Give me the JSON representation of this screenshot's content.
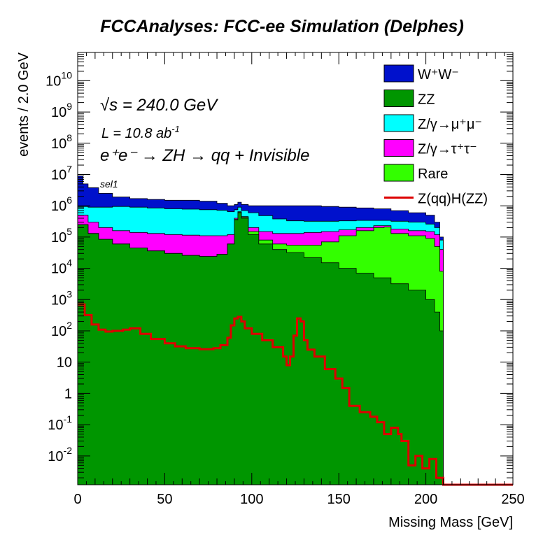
{
  "title": "FCCAnalyses: FCC-ee Simulation (Delphes)",
  "chart_data": {
    "type": "area",
    "stacked": true,
    "yscale": "log",
    "xlabel": "Missing Mass [GeV]",
    "ylabel": "events / 2.0 GeV",
    "xlim": [
      0,
      250
    ],
    "ylim": [
      0.0012,
      80000000000
    ],
    "x_ticks": [
      "0",
      "50",
      "100",
      "150",
      "200",
      "250"
    ],
    "y_ticks": [
      {
        "base": "10",
        "exp": "-2",
        "value": 0.01
      },
      {
        "base": "10",
        "exp": "-1",
        "value": 0.1
      },
      {
        "base": "1",
        "exp": "",
        "value": 1
      },
      {
        "base": "10",
        "exp": "",
        "value": 10
      },
      {
        "base": "10",
        "exp": "2",
        "value": 100
      },
      {
        "base": "10",
        "exp": "3",
        "value": 1000
      },
      {
        "base": "10",
        "exp": "4",
        "value": 10000
      },
      {
        "base": "10",
        "exp": "5",
        "value": 100000
      },
      {
        "base": "10",
        "exp": "6",
        "value": 1000000
      },
      {
        "base": "10",
        "exp": "7",
        "value": 10000000
      },
      {
        "base": "10",
        "exp": "8",
        "value": 100000000
      },
      {
        "base": "10",
        "exp": "9",
        "value": 1000000000
      },
      {
        "base": "10",
        "exp": "10",
        "value": 10000000000
      }
    ],
    "annotations": {
      "energy_sqrt": "√",
      "energy_s": "s",
      "energy_rest": " = 240.0 GeV",
      "lumi_main": "L = 10.8 ab",
      "lumi_sup": "-1",
      "process": "e⁺e⁻ → ZH → qq + Invisible",
      "selection": "sel1"
    },
    "series": [
      {
        "key": "zz",
        "label": "ZZ",
        "color": "#009600",
        "style": "fill",
        "points": [
          [
            0,
            250000
          ],
          [
            6,
            130000
          ],
          [
            12,
            85000
          ],
          [
            20,
            60000
          ],
          [
            30,
            45000
          ],
          [
            40,
            36000
          ],
          [
            50,
            30000
          ],
          [
            60,
            26000
          ],
          [
            70,
            24000
          ],
          [
            80,
            28000
          ],
          [
            86,
            60000
          ],
          [
            90,
            350000
          ],
          [
            92,
            600000
          ],
          [
            94,
            400000
          ],
          [
            98,
            120000
          ],
          [
            104,
            60000
          ],
          [
            112,
            40000
          ],
          [
            120,
            32000
          ],
          [
            130,
            22000
          ],
          [
            140,
            15000
          ],
          [
            150,
            10000
          ],
          [
            160,
            7000
          ],
          [
            170,
            5000
          ],
          [
            180,
            3200
          ],
          [
            190,
            2000
          ],
          [
            200,
            1000
          ],
          [
            205,
            400
          ],
          [
            208,
            100
          ],
          [
            210,
            1e-05
          ]
        ]
      },
      {
        "key": "rare",
        "label": "Rare",
        "color": "#33ff00",
        "style": "fill",
        "points": [
          [
            0,
            250000
          ],
          [
            6,
            130000
          ],
          [
            12,
            85000
          ],
          [
            20,
            60000
          ],
          [
            30,
            45000
          ],
          [
            40,
            36000
          ],
          [
            50,
            30000
          ],
          [
            60,
            26000
          ],
          [
            70,
            24000
          ],
          [
            80,
            28000
          ],
          [
            86,
            60000
          ],
          [
            90,
            370000
          ],
          [
            92,
            630000
          ],
          [
            94,
            430000
          ],
          [
            98,
            150000
          ],
          [
            104,
            80000
          ],
          [
            112,
            60000
          ],
          [
            120,
            55000
          ],
          [
            130,
            55000
          ],
          [
            140,
            70000
          ],
          [
            150,
            110000
          ],
          [
            160,
            160000
          ],
          [
            170,
            200000
          ],
          [
            176,
            210000
          ],
          [
            180,
            130000
          ],
          [
            190,
            110000
          ],
          [
            200,
            90000
          ],
          [
            205,
            50000
          ],
          [
            208,
            8000
          ],
          [
            210,
            1e-05
          ]
        ]
      },
      {
        "key": "tautau",
        "label": "Z/γ→τ⁺τ⁻",
        "color": "#ff00ff",
        "style": "fill",
        "points": [
          [
            0,
            500000
          ],
          [
            6,
            300000
          ],
          [
            12,
            200000
          ],
          [
            20,
            160000
          ],
          [
            30,
            140000
          ],
          [
            40,
            130000
          ],
          [
            50,
            120000
          ],
          [
            60,
            115000
          ],
          [
            70,
            110000
          ],
          [
            80,
            110000
          ],
          [
            86,
            120000
          ],
          [
            90,
            400000
          ],
          [
            92,
            650000
          ],
          [
            94,
            450000
          ],
          [
            98,
            200000
          ],
          [
            104,
            150000
          ],
          [
            112,
            130000
          ],
          [
            120,
            130000
          ],
          [
            130,
            140000
          ],
          [
            140,
            150000
          ],
          [
            150,
            170000
          ],
          [
            160,
            200000
          ],
          [
            170,
            230000
          ],
          [
            180,
            180000
          ],
          [
            190,
            160000
          ],
          [
            200,
            150000
          ],
          [
            205,
            120000
          ],
          [
            208,
            40000
          ],
          [
            210,
            1e-05
          ]
        ]
      },
      {
        "key": "mumu",
        "label": "Z/γ→μ⁺μ⁻",
        "color": "#00ffff",
        "style": "fill",
        "points": [
          [
            0,
            950000
          ],
          [
            6,
            900000
          ],
          [
            12,
            900000
          ],
          [
            20,
            950000
          ],
          [
            30,
            900000
          ],
          [
            40,
            850000
          ],
          [
            50,
            800000
          ],
          [
            60,
            780000
          ],
          [
            70,
            750000
          ],
          [
            80,
            720000
          ],
          [
            86,
            650000
          ],
          [
            90,
            750000
          ],
          [
            92,
            900000
          ],
          [
            94,
            700000
          ],
          [
            98,
            600000
          ],
          [
            104,
            480000
          ],
          [
            112,
            380000
          ],
          [
            120,
            330000
          ],
          [
            130,
            320000
          ],
          [
            140,
            320000
          ],
          [
            150,
            330000
          ],
          [
            160,
            340000
          ],
          [
            170,
            340000
          ],
          [
            180,
            320000
          ],
          [
            190,
            300000
          ],
          [
            200,
            260000
          ],
          [
            205,
            200000
          ],
          [
            208,
            80000
          ],
          [
            210,
            1e-05
          ]
        ]
      },
      {
        "key": "ww",
        "label": "W⁺W⁻",
        "color": "#0011cc",
        "style": "fill",
        "points": [
          [
            0,
            9000000
          ],
          [
            3,
            5000000
          ],
          [
            6,
            3800000
          ],
          [
            12,
            2500000
          ],
          [
            20,
            1900000
          ],
          [
            30,
            1700000
          ],
          [
            40,
            1600000
          ],
          [
            50,
            1500000
          ],
          [
            60,
            1500000
          ],
          [
            70,
            1400000
          ],
          [
            80,
            1200000
          ],
          [
            86,
            1000000
          ],
          [
            90,
            1100000
          ],
          [
            92,
            1300000
          ],
          [
            94,
            1100000
          ],
          [
            98,
            1000000
          ],
          [
            104,
            1000000
          ],
          [
            112,
            1000000
          ],
          [
            120,
            1000000
          ],
          [
            130,
            1000000
          ],
          [
            140,
            950000
          ],
          [
            150,
            900000
          ],
          [
            160,
            850000
          ],
          [
            170,
            800000
          ],
          [
            180,
            700000
          ],
          [
            190,
            600000
          ],
          [
            200,
            500000
          ],
          [
            205,
            300000
          ],
          [
            208,
            100000
          ],
          [
            210,
            1e-05
          ]
        ]
      },
      {
        "key": "signal",
        "label": "Z(qq)H(ZZ)",
        "color": "#dd0000",
        "style": "line",
        "points": [
          [
            0,
            700
          ],
          [
            4,
            320
          ],
          [
            8,
            160
          ],
          [
            12,
            110
          ],
          [
            16,
            95
          ],
          [
            20,
            100
          ],
          [
            26,
            110
          ],
          [
            30,
            120
          ],
          [
            36,
            80
          ],
          [
            42,
            55
          ],
          [
            50,
            40
          ],
          [
            56,
            32
          ],
          [
            62,
            28
          ],
          [
            70,
            26
          ],
          [
            78,
            28
          ],
          [
            82,
            35
          ],
          [
            86,
            60
          ],
          [
            88,
            150
          ],
          [
            90,
            250
          ],
          [
            92,
            280
          ],
          [
            94,
            200
          ],
          [
            96,
            120
          ],
          [
            100,
            80
          ],
          [
            106,
            50
          ],
          [
            112,
            30
          ],
          [
            118,
            15
          ],
          [
            120,
            8
          ],
          [
            122,
            15
          ],
          [
            124,
            70
          ],
          [
            126,
            250
          ],
          [
            128,
            200
          ],
          [
            130,
            50
          ],
          [
            132,
            25
          ],
          [
            136,
            15
          ],
          [
            142,
            6
          ],
          [
            148,
            3
          ],
          [
            152,
            1.5
          ],
          [
            156,
            0.4
          ],
          [
            162,
            0.25
          ],
          [
            168,
            0.18
          ],
          [
            172,
            0.12
          ],
          [
            176,
            0.05
          ],
          [
            180,
            0.08
          ],
          [
            184,
            0.05
          ],
          [
            186,
            0.03
          ],
          [
            190,
            0.005
          ],
          [
            194,
            0.01
          ],
          [
            198,
            0.004
          ],
          [
            202,
            0.008
          ],
          [
            206,
            0.002
          ],
          [
            210,
            0.0012
          ],
          [
            250,
            0.0012
          ]
        ]
      }
    ],
    "legend": [
      {
        "key": "ww",
        "label": "W⁺W⁻"
      },
      {
        "key": "zz",
        "label": "ZZ"
      },
      {
        "key": "mumu",
        "label": "Z/γ→μ⁺μ⁻"
      },
      {
        "key": "tautau",
        "label": "Z/γ→τ⁺τ⁻"
      },
      {
        "key": "rare",
        "label": "Rare"
      },
      {
        "key": "signal",
        "label": "Z(qq)H(ZZ)"
      }
    ],
    "legend_position": "top-right",
    "grid": false
  }
}
